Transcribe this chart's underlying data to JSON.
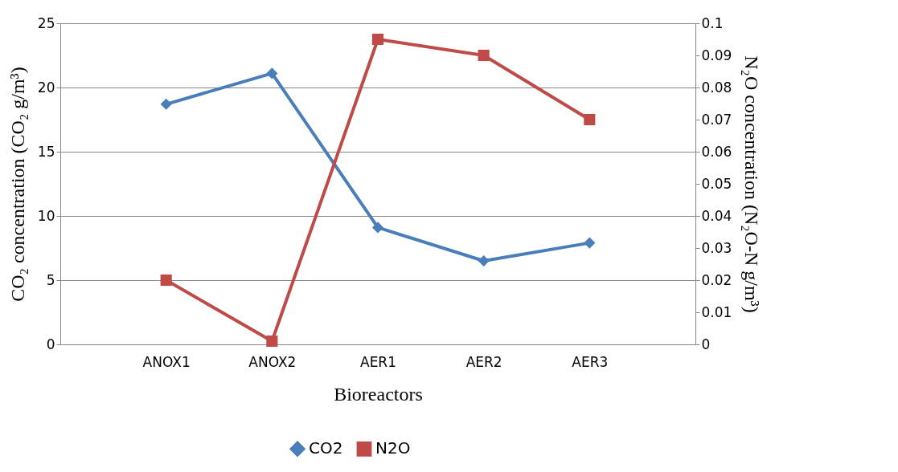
{
  "chart_data": {
    "type": "line",
    "xlabel": "Bioreactors",
    "ylabel": "CO₂  concentration (CO₂ g/m³)",
    "y2label": "N₂O  concentration (N₂O-N g/m³)",
    "categories": [
      null,
      "ANOX1",
      "ANOX2",
      "AER1",
      "AER2",
      "AER3",
      null
    ],
    "series": [
      {
        "name": "CO2",
        "color": "#4a7ebb",
        "marker": "diamond",
        "values": [
          null,
          18.7,
          21.1,
          9.1,
          6.5,
          7.9,
          null
        ]
      },
      {
        "name": "N2O",
        "color": "#be4b48",
        "marker": "square",
        "axis": "y2",
        "values": [
          null,
          0.02,
          0.001,
          0.095,
          0.09,
          0.07,
          null
        ]
      }
    ],
    "ylim": [
      0,
      25
    ],
    "yticks": [
      0,
      5,
      10,
      15,
      20,
      25
    ],
    "y2lim": [
      0,
      0.1
    ],
    "y2ticks": [
      {
        "value": 0,
        "label": "0"
      },
      0.01,
      0.02,
      0.03,
      0.04,
      0.05,
      0.06,
      0.07,
      0.08,
      0.09,
      {
        "value": 0.1,
        "label": "0.1"
      }
    ],
    "grid": "y",
    "legend": "bottom",
    "line_style": "solid"
  }
}
